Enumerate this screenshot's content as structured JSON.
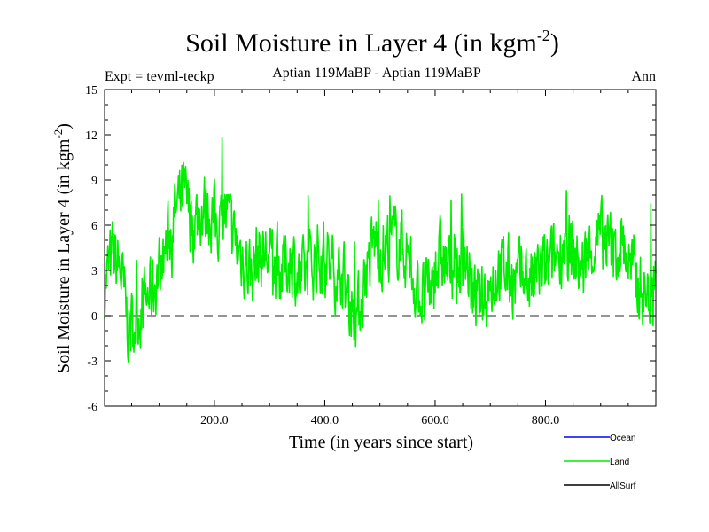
{
  "chart_data": {
    "type": "line",
    "title": "Soil Moisture in Layer 4 (in kgm",
    "title_sup": "-2",
    "title_close": ")",
    "subtitle_left": "Expt = tevml-teckp",
    "subtitle_center": "Aptian   119MaBP - Aptian   119MaBP",
    "subtitle_right": "Ann",
    "xlabel": "Time (in years since start)",
    "ylabel": "Soil Moisture in Layer 4 (in kgm",
    "ylabel_sup": "-2",
    "ylabel_close": ")",
    "xlim": [
      1,
      1000
    ],
    "ylim": [
      -6,
      15
    ],
    "xticks": [
      200,
      400,
      600,
      800
    ],
    "xtick_labels": [
      "200.0",
      "400.0",
      "600.0",
      "800.0"
    ],
    "yticks": [
      -6,
      -3,
      0,
      3,
      6,
      9,
      12,
      15
    ],
    "ytick_labels": [
      "-6",
      "-3",
      "0",
      "3",
      "6",
      "9",
      "12",
      "15"
    ],
    "zero_line": 0,
    "anchors": [
      [
        1,
        2
      ],
      [
        15,
        4
      ],
      [
        30,
        3
      ],
      [
        45,
        -1
      ],
      [
        60,
        0
      ],
      [
        75,
        1
      ],
      [
        90,
        2
      ],
      [
        100,
        3
      ],
      [
        115,
        5
      ],
      [
        130,
        7
      ],
      [
        145,
        8
      ],
      [
        160,
        6
      ],
      [
        175,
        7
      ],
      [
        190,
        7
      ],
      [
        205,
        6
      ],
      [
        220,
        7
      ],
      [
        235,
        5
      ],
      [
        250,
        4
      ],
      [
        265,
        3
      ],
      [
        280,
        4
      ],
      [
        295,
        4
      ],
      [
        310,
        3
      ],
      [
        325,
        3
      ],
      [
        340,
        4
      ],
      [
        355,
        2
      ],
      [
        370,
        3
      ],
      [
        385,
        4
      ],
      [
        400,
        4
      ],
      [
        415,
        3
      ],
      [
        430,
        3
      ],
      [
        445,
        1
      ],
      [
        460,
        0
      ],
      [
        475,
        3
      ],
      [
        490,
        5
      ],
      [
        505,
        4
      ],
      [
        520,
        5
      ],
      [
        535,
        5
      ],
      [
        550,
        4
      ],
      [
        565,
        2
      ],
      [
        580,
        1
      ],
      [
        595,
        2
      ],
      [
        610,
        4
      ],
      [
        625,
        3
      ],
      [
        640,
        3
      ],
      [
        655,
        4
      ],
      [
        670,
        1
      ],
      [
        685,
        1
      ],
      [
        700,
        2
      ],
      [
        715,
        3
      ],
      [
        730,
        3
      ],
      [
        745,
        2
      ],
      [
        760,
        3
      ],
      [
        775,
        2
      ],
      [
        790,
        3
      ],
      [
        805,
        3
      ],
      [
        820,
        4
      ],
      [
        835,
        5
      ],
      [
        850,
        4
      ],
      [
        865,
        3
      ],
      [
        880,
        4
      ],
      [
        895,
        5
      ],
      [
        910,
        5
      ],
      [
        925,
        4
      ],
      [
        940,
        5
      ],
      [
        955,
        3
      ],
      [
        970,
        2
      ],
      [
        985,
        1
      ],
      [
        1000,
        4
      ]
    ],
    "noise_amplitude": 2.2,
    "series": [
      {
        "name": "Ocean",
        "color": "#0000ff",
        "values": []
      },
      {
        "name": "Land",
        "color": "#00ee00",
        "values": "generated from anchors"
      },
      {
        "name": "AllSurf",
        "color": "#000000",
        "values": []
      }
    ],
    "legend_position": "bottom-right"
  }
}
